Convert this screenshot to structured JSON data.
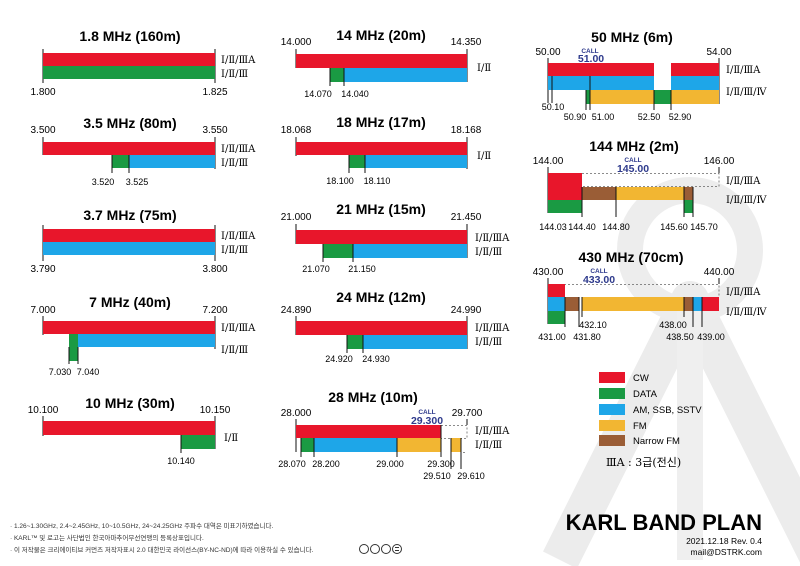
{
  "colors": {
    "CW": "#e8162b",
    "DATA": "#1a9a43",
    "PHONE": "#1ea6e8",
    "FM": "#f2b632",
    "NFM": "#9a5d36"
  },
  "class_labels": {
    "abc": "Ⅰ/Ⅱ/ⅢA",
    "abc4": "Ⅰ/Ⅱ/Ⅲ/Ⅳ",
    "ab3": "Ⅰ/Ⅱ/Ⅲ",
    "ab": "Ⅰ/Ⅱ"
  },
  "bands": [
    {
      "title": "1.8 MHz (160m)",
      "start": "1.800",
      "end": "1.825",
      "labels": [
        "Ⅰ/Ⅱ/ⅢA",
        "Ⅰ/Ⅱ/Ⅲ"
      ]
    },
    {
      "title": "3.5 MHz (80m)",
      "start": "3.500",
      "end": "3.550",
      "ticks": [
        "3.520",
        "3.525"
      ],
      "labels": [
        "Ⅰ/Ⅱ/ⅢA",
        "Ⅰ/Ⅱ/Ⅲ"
      ]
    },
    {
      "title": "3.7 MHz (75m)",
      "start": "3.790",
      "end": "3.800",
      "labels": [
        "Ⅰ/Ⅱ/ⅢA",
        "Ⅰ/Ⅱ/Ⅲ"
      ]
    },
    {
      "title": "7 MHz (40m)",
      "start": "7.000",
      "end": "7.200",
      "ticks": [
        "7.030",
        "7.040"
      ],
      "labels": [
        "Ⅰ/Ⅱ/ⅢA",
        "Ⅰ/Ⅱ/Ⅲ"
      ]
    },
    {
      "title": "10 MHz (30m)",
      "start": "10.100",
      "end": "10.150",
      "ticks": [
        "10.140"
      ],
      "labels": [
        "Ⅰ/Ⅱ"
      ]
    },
    {
      "title": "14 MHz (20m)",
      "start": "14.000",
      "end": "14.350",
      "ticks": [
        "14.070",
        "14.040"
      ],
      "labels": [
        "Ⅰ/Ⅱ"
      ]
    },
    {
      "title": "18 MHz (17m)",
      "start": "18.068",
      "end": "18.168",
      "ticks": [
        "18.100",
        "18.110"
      ],
      "labels": [
        "Ⅰ/Ⅱ"
      ]
    },
    {
      "title": "21 MHz (15m)",
      "start": "21.000",
      "end": "21.450",
      "ticks": [
        "21.070",
        "21.150"
      ],
      "labels": [
        "Ⅰ/Ⅱ/ⅢA",
        "Ⅰ/Ⅱ/Ⅲ"
      ]
    },
    {
      "title": "24 MHz (12m)",
      "start": "24.890",
      "end": "24.990",
      "ticks": [
        "24.920",
        "24.930"
      ],
      "labels": [
        "Ⅰ/Ⅱ/ⅢA",
        "Ⅰ/Ⅱ/Ⅲ"
      ]
    },
    {
      "title": "28 MHz (10m)",
      "start": "28.000",
      "end": "29.700",
      "call": "29.300",
      "ticks": [
        "28.070",
        "28.200",
        "29.000",
        "29.300",
        "29.510",
        "29.610"
      ],
      "labels": [
        "Ⅰ/Ⅱ/ⅢA",
        "Ⅰ/Ⅱ/Ⅲ"
      ]
    },
    {
      "title": "50 MHz (6m)",
      "start": "50.00",
      "end": "54.00",
      "call": "51.00",
      "ticks": [
        "50.10",
        "50.90",
        "51.00",
        "52.50",
        "52.90"
      ],
      "labels": [
        "Ⅰ/Ⅱ/ⅢA",
        "Ⅰ/Ⅱ/Ⅲ/Ⅳ"
      ]
    },
    {
      "title": "144 MHz (2m)",
      "start": "144.00",
      "end": "146.00",
      "call": "145.00",
      "ticks": [
        "144.03",
        "144.40",
        "144.80",
        "145.60",
        "145.70"
      ],
      "labels": [
        "Ⅰ/Ⅱ/ⅢA",
        "Ⅰ/Ⅱ/Ⅲ/Ⅳ"
      ]
    },
    {
      "title": "430 MHz (70cm)",
      "start": "430.00",
      "end": "440.00",
      "call": "433.00",
      "ticks": [
        "432.10",
        "438.00",
        "431.00",
        "431.80",
        "438.50",
        "439.00"
      ],
      "labels": [
        "Ⅰ/Ⅱ/ⅢA",
        "Ⅰ/Ⅱ/Ⅲ/Ⅳ"
      ]
    }
  ],
  "call_word": "CALL",
  "legend": [
    {
      "key": "CW",
      "label": "CW"
    },
    {
      "key": "DATA",
      "label": "DATA"
    },
    {
      "key": "PHONE",
      "label": "AM, SSB, SSTV"
    },
    {
      "key": "FM",
      "label": "FM"
    },
    {
      "key": "NFM",
      "label": "Narrow FM"
    }
  ],
  "legend_note": "ⅢA : 3급(전신)",
  "brand": {
    "title": "KARL BAND PLAN",
    "date_rev": "2021.12.18  Rev. 0.4",
    "email": "mail@DSTRK.com",
    "watermark": "KARL"
  },
  "footnotes": [
    "· 1.26~1.30GHz, 2.4~2.45GHz, 10~10.5GHz, 24~24.25GHz 주파수 대역은 미표기하였습니다.",
    "· KARL™ 및 로고는 사단법인 한국아마추어무선연맹의 등록상표입니다.",
    "· 이 저작물은 크리에이티브 커먼즈 저작자표시 2.0 대한민국 라이선스(BY-NC-ND)에 따라 이용하실 수 있습니다."
  ],
  "license_icons": [
    "cc-icon",
    "by-icon",
    "nc-icon",
    "nd-icon"
  ]
}
